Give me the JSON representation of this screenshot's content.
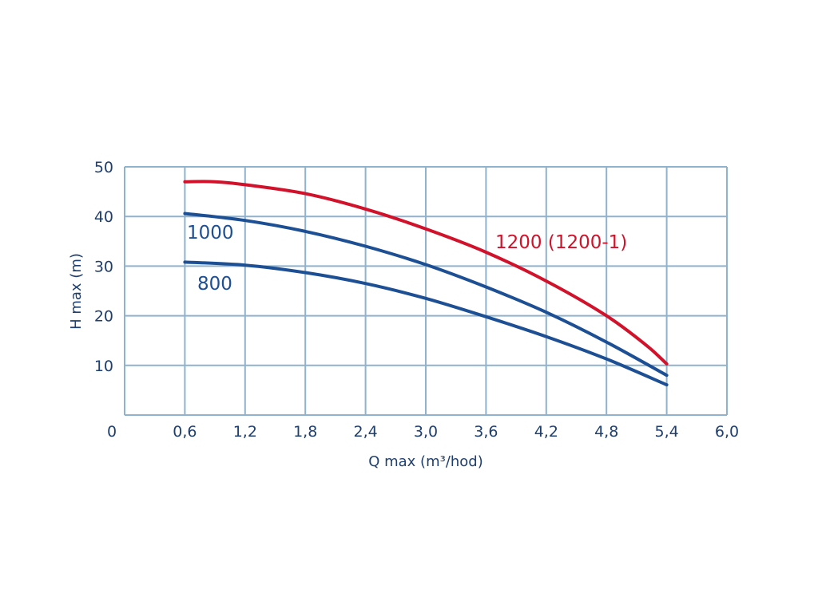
{
  "chart_data": {
    "type": "line",
    "xlabel": "Q max (m³/hod)",
    "ylabel": "H max (m)",
    "xlim": [
      0,
      6.0
    ],
    "ylim": [
      0,
      50
    ],
    "x_ticks": [
      "0",
      "0,6",
      "1,2",
      "1,8",
      "2,4",
      "3,0",
      "3,6",
      "4,2",
      "4,8",
      "5,4",
      "6,0"
    ],
    "y_ticks": [
      "10",
      "20",
      "30",
      "40",
      "50"
    ],
    "grid": true,
    "colors": {
      "grid": "#8fb3cf",
      "blue": "#1d4f94",
      "red": "#d2112a",
      "text": "#1f3f6e"
    },
    "series": [
      {
        "name": "1200 (1200-1)",
        "color": "#d2112a",
        "x": [
          0.6,
          0.9,
          1.2,
          1.8,
          2.4,
          3.0,
          3.6,
          4.2,
          4.8,
          5.2,
          5.4
        ],
        "y": [
          47.0,
          47.0,
          46.4,
          44.6,
          41.5,
          37.5,
          32.8,
          27.0,
          20.0,
          14.0,
          10.3
        ]
      },
      {
        "name": "1000",
        "color": "#1d4f94",
        "x": [
          0.6,
          1.2,
          1.8,
          2.4,
          3.0,
          3.6,
          4.2,
          4.8,
          5.4
        ],
        "y": [
          40.6,
          39.2,
          37.0,
          34.0,
          30.3,
          25.8,
          20.7,
          14.7,
          8.0
        ]
      },
      {
        "name": "800",
        "color": "#1d4f94",
        "x": [
          0.6,
          1.2,
          1.8,
          2.4,
          3.0,
          3.6,
          4.2,
          4.8,
          5.4
        ],
        "y": [
          30.8,
          30.2,
          28.7,
          26.5,
          23.5,
          19.8,
          15.8,
          11.3,
          6.1
        ]
      }
    ]
  }
}
